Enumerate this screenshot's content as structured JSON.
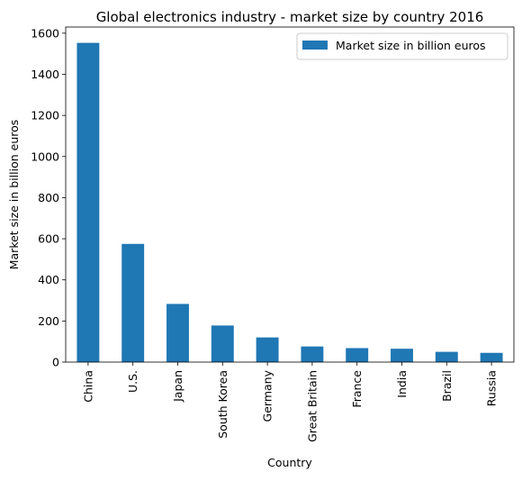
{
  "chart_data": {
    "type": "bar",
    "title": "Global electronics industry - market size by country 2016",
    "xlabel": "Country",
    "ylabel": "Market size in billion euros",
    "categories": [
      "China",
      "U.S.",
      "Japan",
      "South Korea",
      "Germany",
      "Great Britain",
      "France",
      "India",
      "Brazil",
      "Russia"
    ],
    "series": [
      {
        "name": "Market size in billion euros",
        "values": [
          1553,
          575,
          283,
          178,
          120,
          76,
          68,
          65,
          50,
          45
        ],
        "color": "#1f77b4"
      }
    ],
    "ylim": [
      0,
      1630
    ],
    "yticks": [
      0,
      200,
      400,
      600,
      800,
      1000,
      1200,
      1400,
      1600
    ],
    "legend": "top-right",
    "grid": false
  }
}
